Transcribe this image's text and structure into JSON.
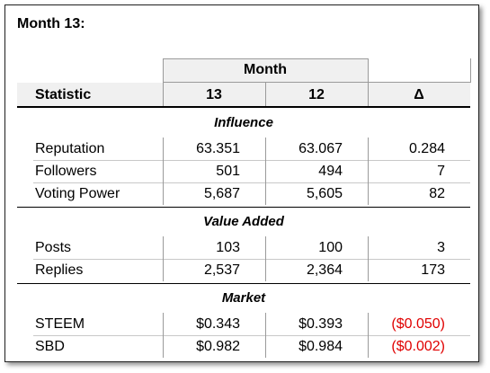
{
  "title": "Month 13:",
  "table": {
    "group_header": "Month",
    "headers": [
      "Statistic",
      "13",
      "12",
      "Δ"
    ],
    "sections": [
      {
        "name": "Influence",
        "rows": [
          [
            "Reputation",
            "63.351",
            "63.067",
            "0.284"
          ],
          [
            "Followers",
            "501",
            "494",
            "7"
          ],
          [
            "Voting Power",
            "5,687",
            "5,605",
            "82"
          ]
        ]
      },
      {
        "name": "Value Added",
        "rows": [
          [
            "Posts",
            "103",
            "100",
            "3"
          ],
          [
            "Replies",
            "2,537",
            "2,364",
            "173"
          ]
        ]
      },
      {
        "name": "Market",
        "rows": [
          [
            "STEEM",
            "$0.343",
            "$0.393",
            "($0.050)"
          ],
          [
            "SBD",
            "$0.982",
            "$0.984",
            "($0.002)"
          ]
        ]
      }
    ]
  }
}
